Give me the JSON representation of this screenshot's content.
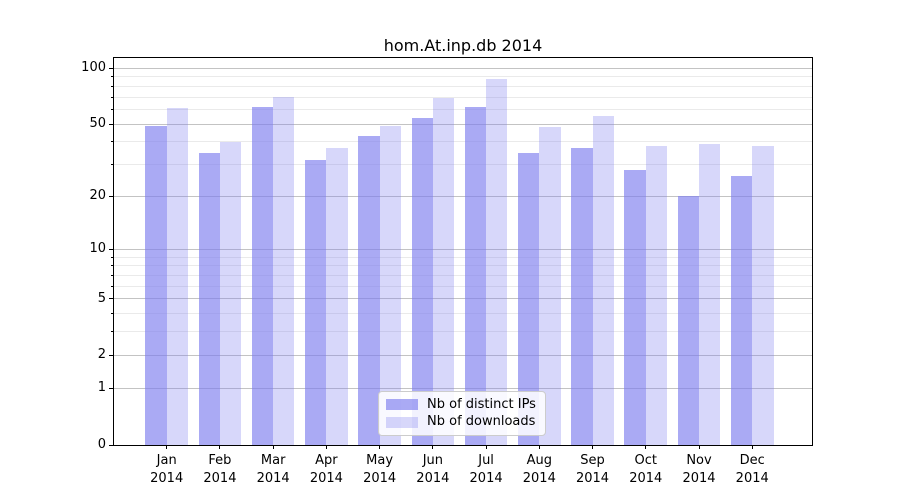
{
  "chart_data": {
    "type": "bar",
    "title": "hom.At.inp.db 2014",
    "categories": [
      "Jan",
      "Feb",
      "Mar",
      "Apr",
      "May",
      "Jun",
      "Jul",
      "Aug",
      "Sep",
      "Oct",
      "Nov",
      "Dec"
    ],
    "year_label": "2014",
    "series": [
      {
        "name": "Nb of distinct IPs",
        "values": [
          49,
          35,
          62,
          32,
          43,
          54,
          62,
          35,
          37,
          28,
          20,
          26
        ],
        "color": "rgba(124,124,238,0.65)"
      },
      {
        "name": "Nb of downloads",
        "values": [
          61,
          40,
          70,
          37,
          49,
          69,
          88,
          48,
          55,
          38,
          39,
          38
        ],
        "color": "rgba(124,124,238,0.30)"
      }
    ],
    "yscale": "log1p",
    "ylim": [
      0,
      115
    ],
    "y_major_ticks": [
      0,
      1,
      2,
      5,
      10,
      20,
      50,
      100
    ],
    "y_minor_ticks": [
      3,
      4,
      6,
      7,
      8,
      9,
      30,
      40,
      60,
      70,
      80,
      90
    ],
    "grid": "horizontal-behind-bars",
    "legend_position": "lower center",
    "xlabel": "",
    "ylabel": ""
  },
  "colors": {
    "background": "#ffffff",
    "bar_base": "#7c7cee",
    "major_grid": "#c3c3c3",
    "minor_grid": "#eaeaea",
    "spine": "#000000",
    "legend_border": "#cccccc"
  }
}
